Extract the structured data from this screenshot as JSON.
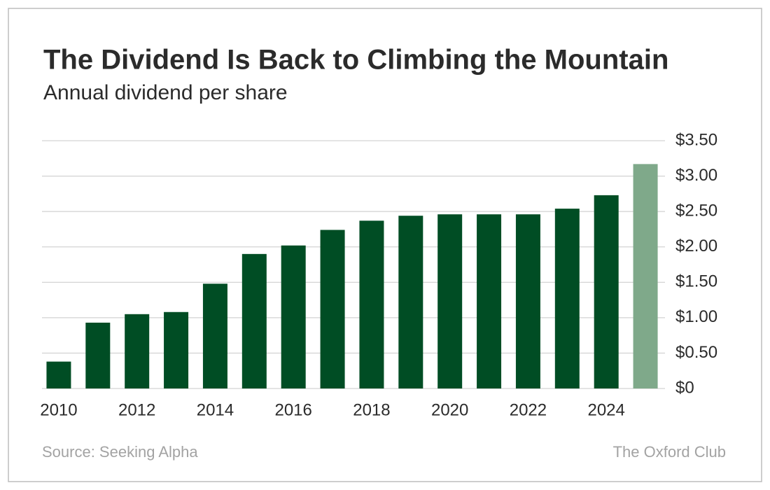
{
  "chart_data": {
    "type": "bar",
    "title": "The Dividend Is Back to Climbing the Mountain",
    "subtitle": "Annual dividend per share",
    "categories": [
      "2010",
      null,
      "2012",
      null,
      "2014",
      null,
      "2016",
      null,
      "2018",
      null,
      "2020",
      null,
      "2022",
      null,
      "2024",
      null
    ],
    "values": [
      0.38,
      0.93,
      1.05,
      1.08,
      1.48,
      1.9,
      2.02,
      2.24,
      2.37,
      2.44,
      2.46,
      2.46,
      2.46,
      2.54,
      2.73,
      3.17
    ],
    "colors": [
      "#004d24",
      "#004d24",
      "#004d24",
      "#004d24",
      "#004d24",
      "#004d24",
      "#004d24",
      "#004d24",
      "#004d24",
      "#004d24",
      "#004d24",
      "#004d24",
      "#004d24",
      "#004d24",
      "#004d24",
      "#7fa98a"
    ],
    "ylim": [
      0,
      3.5
    ],
    "yticks": [
      {
        "value": 0,
        "label": "$0"
      },
      {
        "value": 0.5,
        "label": "$0.50"
      },
      {
        "value": 1,
        "label": "$1.00"
      },
      {
        "value": 1.5,
        "label": "$1.50"
      },
      {
        "value": 2,
        "label": "$2.00"
      },
      {
        "value": 2.5,
        "label": "$2.50"
      },
      {
        "value": 3,
        "label": "$3.00"
      },
      {
        "value": 3.5,
        "label": "$3.50"
      }
    ],
    "grid": true,
    "source": "Source: Seeking Alpha",
    "credit": "The Oxford Club"
  }
}
